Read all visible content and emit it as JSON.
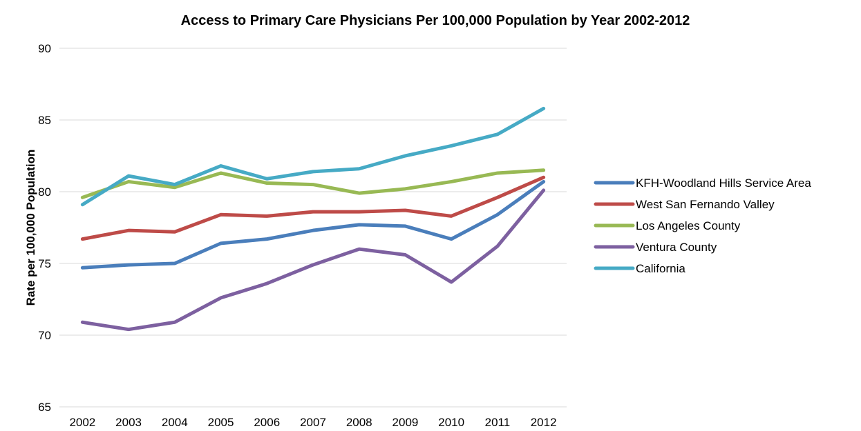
{
  "chart_data": {
    "type": "line",
    "title": "Access to Primary Care Physicians Per 100,000 Population by Year 2002-2012",
    "xlabel": "",
    "ylabel": "Rate per 100,000 Population",
    "categories": [
      "2002",
      "2003",
      "2004",
      "2005",
      "2006",
      "2007",
      "2008",
      "2009",
      "2010",
      "2011",
      "2012"
    ],
    "ylim": [
      65,
      90
    ],
    "yticks": [
      65,
      70,
      75,
      80,
      85,
      90
    ],
    "grid": true,
    "legend_position": "right",
    "series": [
      {
        "name": "KFH-Woodland Hills Service Area",
        "color": "#4a7ebb",
        "values": [
          74.7,
          74.9,
          75.0,
          76.4,
          76.7,
          77.3,
          77.7,
          77.6,
          76.7,
          78.4,
          80.7
        ]
      },
      {
        "name": "West San Fernando Valley",
        "color": "#be4b48",
        "values": [
          76.7,
          77.3,
          77.2,
          78.4,
          78.3,
          78.6,
          78.6,
          78.7,
          78.3,
          79.6,
          81.0
        ]
      },
      {
        "name": "Los Angeles County",
        "color": "#98b954",
        "values": [
          79.6,
          80.7,
          80.3,
          81.3,
          80.6,
          80.5,
          79.9,
          80.2,
          80.7,
          81.3,
          81.5
        ]
      },
      {
        "name": "Ventura County",
        "color": "#7d60a0",
        "values": [
          70.9,
          70.4,
          70.9,
          72.6,
          73.6,
          74.9,
          76.0,
          75.6,
          73.7,
          76.2,
          80.1
        ]
      },
      {
        "name": "California",
        "color": "#46aac5",
        "values": [
          79.1,
          81.1,
          80.5,
          81.8,
          80.9,
          81.4,
          81.6,
          82.5,
          83.2,
          84.0,
          85.8
        ]
      }
    ]
  }
}
